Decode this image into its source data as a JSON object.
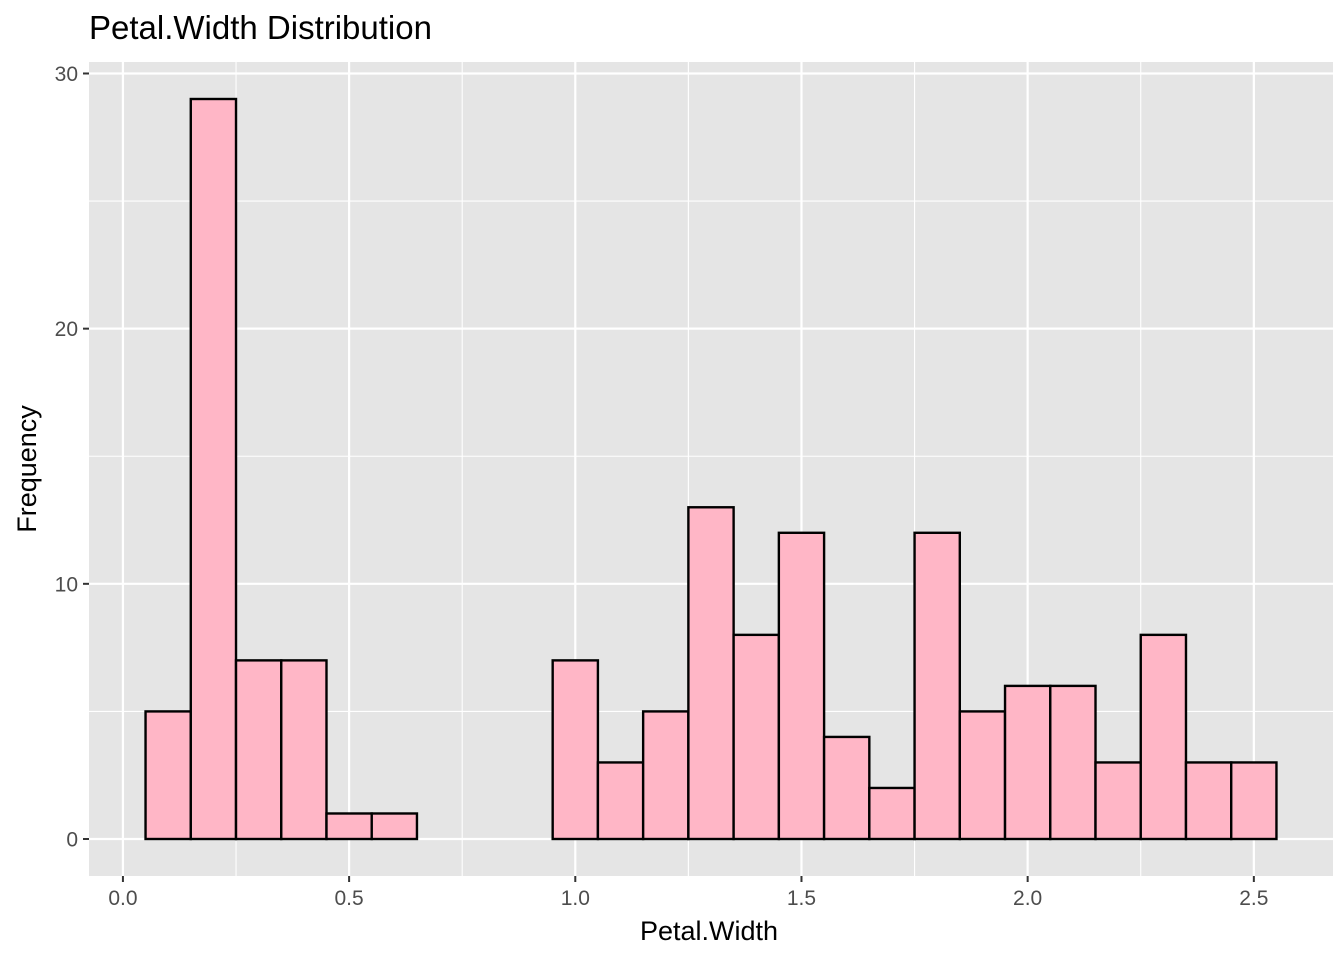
{
  "chart_data": {
    "type": "bar",
    "title": "Petal.Width Distribution",
    "xlabel": "Petal.Width",
    "ylabel": "Frequency",
    "bin_width": 0.1,
    "bins": [
      {
        "x0": 0.05,
        "x1": 0.15,
        "count": 5
      },
      {
        "x0": 0.15,
        "x1": 0.25,
        "count": 29
      },
      {
        "x0": 0.25,
        "x1": 0.35,
        "count": 7
      },
      {
        "x0": 0.35,
        "x1": 0.45,
        "count": 7
      },
      {
        "x0": 0.45,
        "x1": 0.55,
        "count": 1
      },
      {
        "x0": 0.55,
        "x1": 0.65,
        "count": 1
      },
      {
        "x0": 0.65,
        "x1": 0.75,
        "count": 0
      },
      {
        "x0": 0.75,
        "x1": 0.85,
        "count": 0
      },
      {
        "x0": 0.85,
        "x1": 0.95,
        "count": 0
      },
      {
        "x0": 0.95,
        "x1": 1.05,
        "count": 7
      },
      {
        "x0": 1.05,
        "x1": 1.15,
        "count": 3
      },
      {
        "x0": 1.15,
        "x1": 1.25,
        "count": 5
      },
      {
        "x0": 1.25,
        "x1": 1.35,
        "count": 13
      },
      {
        "x0": 1.35,
        "x1": 1.45,
        "count": 8
      },
      {
        "x0": 1.45,
        "x1": 1.55,
        "count": 12
      },
      {
        "x0": 1.55,
        "x1": 1.65,
        "count": 4
      },
      {
        "x0": 1.65,
        "x1": 1.75,
        "count": 2
      },
      {
        "x0": 1.75,
        "x1": 1.85,
        "count": 12
      },
      {
        "x0": 1.85,
        "x1": 1.95,
        "count": 5
      },
      {
        "x0": 1.95,
        "x1": 2.05,
        "count": 6
      },
      {
        "x0": 2.05,
        "x1": 2.15,
        "count": 6
      },
      {
        "x0": 2.15,
        "x1": 2.25,
        "count": 3
      },
      {
        "x0": 2.25,
        "x1": 2.35,
        "count": 8
      },
      {
        "x0": 2.35,
        "x1": 2.45,
        "count": 3
      },
      {
        "x0": 2.45,
        "x1": 2.55,
        "count": 3
      }
    ],
    "xlim": [
      -0.075,
      2.675
    ],
    "ylim": [
      -1.45,
      30.45
    ],
    "x_ticks": [
      0.0,
      0.5,
      1.0,
      1.5,
      2.0,
      2.5
    ],
    "x_tick_labels": [
      "0.0",
      "0.5",
      "1.0",
      "1.5",
      "2.0",
      "2.5"
    ],
    "y_ticks": [
      0,
      10,
      20,
      30
    ],
    "y_tick_labels": [
      "0",
      "10",
      "20",
      "30"
    ],
    "grid": true,
    "legend": "none",
    "colors": {
      "bar_fill": "#ffb6c6",
      "bar_stroke": "#000000",
      "panel_background": "#e5e5e5",
      "grid_line": "#ffffff",
      "tick_label": "#4d4d4d",
      "tick_mark": "#333333"
    }
  }
}
